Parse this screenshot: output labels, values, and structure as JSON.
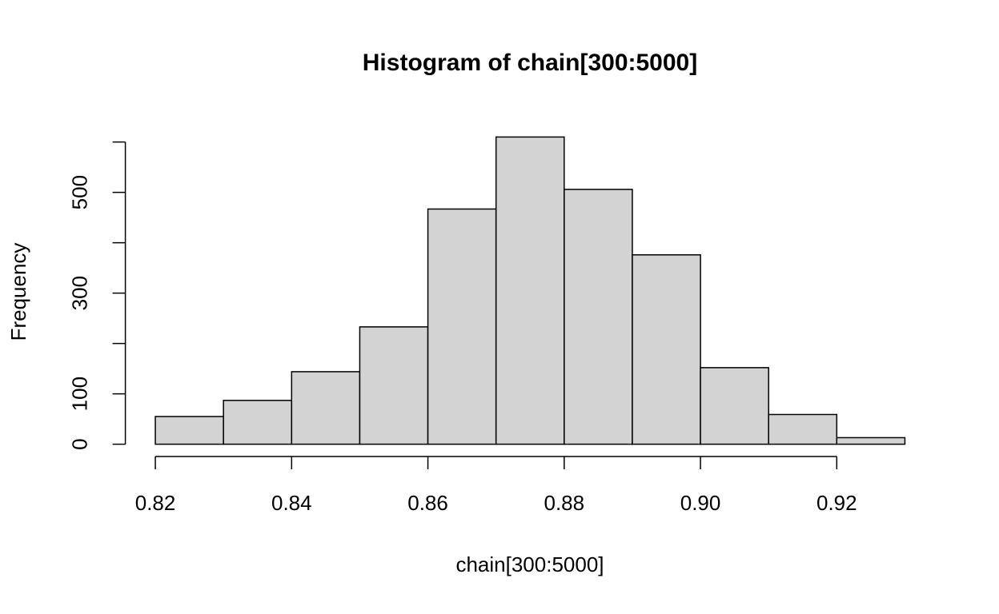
{
  "chart_data": {
    "type": "histogram",
    "title": "Histogram of chain[300:5000]",
    "x_label": "chain[300:5000]",
    "y_label": "Frequency",
    "bins": [
      0.82,
      0.83,
      0.84,
      0.85,
      0.86,
      0.87,
      0.88,
      0.89,
      0.9,
      0.91,
      0.92,
      0.93
    ],
    "values": [
      55,
      87,
      144,
      233,
      467,
      610,
      506,
      376,
      152,
      59,
      13
    ],
    "color": "#d3d3d3",
    "xlim": [
      0.8156,
      0.9344
    ],
    "ylim": [
      -24.4,
      634.4
    ],
    "xticks": [
      0.82,
      0.84,
      0.86,
      0.88,
      {
        "value": 0.9,
        "label": "0.90"
      },
      0.92
    ],
    "yticks": [
      0,
      100,
      {
        "value": 200
      },
      300,
      {
        "value": 400
      },
      500,
      {
        "value": 600
      }
    ],
    "grid": false
  }
}
